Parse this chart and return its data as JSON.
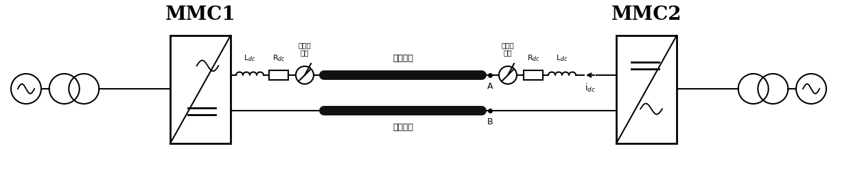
{
  "bg_color": "#ffffff",
  "line_color": "#000000",
  "lw": 1.5,
  "cable_color": "#111111",
  "figsize": [
    12.4,
    2.65
  ],
  "dpi": 100,
  "mmc1_title": "MMC1",
  "mmc2_title": "MMC2",
  "label_Ldc": "L$_{dc}$",
  "label_Rdc": "R$_{dc}$",
  "label_breaker": "直流断\n路器",
  "label_cable_top": "直流电缆",
  "label_cable_bot": "直流电缆",
  "label_A": "A",
  "label_B": "B",
  "label_idc": "i$_{dc}$"
}
